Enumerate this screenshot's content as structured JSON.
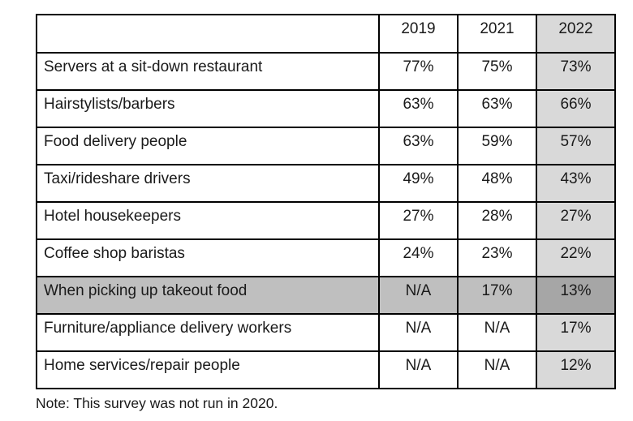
{
  "chart_data": {
    "type": "table",
    "columns": [
      "",
      "2019",
      "2021",
      "2022"
    ],
    "rows": [
      {
        "label": "Servers at a sit-down restaurant",
        "values": [
          "77%",
          "75%",
          "73%"
        ]
      },
      {
        "label": "Hairstylists/barbers",
        "values": [
          "63%",
          "63%",
          "66%"
        ]
      },
      {
        "label": "Food delivery people",
        "values": [
          "63%",
          "59%",
          "57%"
        ]
      },
      {
        "label": "Taxi/rideshare drivers",
        "values": [
          "49%",
          "48%",
          "43%"
        ]
      },
      {
        "label": "Hotel housekeepers",
        "values": [
          "27%",
          "28%",
          "27%"
        ]
      },
      {
        "label": "Coffee shop baristas",
        "values": [
          "24%",
          "23%",
          "22%"
        ]
      },
      {
        "label": "When picking up takeout food",
        "values": [
          "N/A",
          "17%",
          "13%"
        ]
      },
      {
        "label": "Furniture/appliance delivery workers",
        "values": [
          "N/A",
          "N/A",
          "17%"
        ]
      },
      {
        "label": "Home services/repair people",
        "values": [
          "N/A",
          "N/A",
          "12%"
        ]
      }
    ],
    "highlighted_column": "2022",
    "highlighted_row": "When picking up takeout food",
    "note": "Note: This survey was not run in 2020.",
    "layout_hints": {
      "grid": "on",
      "value_alignment": "center",
      "label_alignment": "left"
    }
  },
  "colors": {
    "column_highlight": "#d9d9d9",
    "row_highlight": "#bfbfbf",
    "row_column_intersection": "#a6a6a6",
    "border": "#000000",
    "text": "#1a1a1a"
  }
}
